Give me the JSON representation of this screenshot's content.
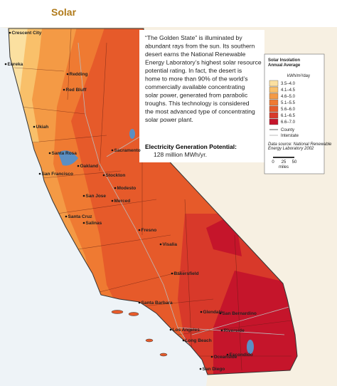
{
  "header": {
    "title": "Solar"
  },
  "description": {
    "lines": [
      "“The Golden State” is illuminated by",
      "abundant rays from the sun. Its southern",
      "desert earns the National Renewable",
      "Energy Laboratory’s highest solar resource",
      "potential rating. In fact, the desert is",
      "home to more than 90% of the world’s",
      "commercially available concentrating",
      "solar power, generated from parabolic",
      "troughs. This technology is considered",
      "the most advanced type of concentrating",
      "solar power plant."
    ]
  },
  "generation": {
    "label": "Electricity Generation Potential:",
    "value": "128 million MWh/yr."
  },
  "legend": {
    "title": [
      "Solar Insolation",
      "Annual Average"
    ],
    "unit": "kWh/m²/day",
    "items": [
      {
        "label": "3.5–4.0",
        "color": "#fbe0a0"
      },
      {
        "label": "4.1–4.5",
        "color": "#f9c06a"
      },
      {
        "label": "4.6–5.0",
        "color": "#f49a45"
      },
      {
        "label": "5.1–5.5",
        "color": "#ef7a32"
      },
      {
        "label": "5.6–6.0",
        "color": "#e65a2a"
      },
      {
        "label": "6.1–6.5",
        "color": "#d8392a"
      },
      {
        "label": "6.6–7.0",
        "color": "#c5152b"
      }
    ],
    "lines": [
      {
        "label": "County"
      },
      {
        "label": "Interstate"
      }
    ],
    "source": [
      "Data source: National Renewable",
      "Energy Laboratory 2002"
    ],
    "scale": {
      "ticks": [
        "0",
        "25",
        "50"
      ],
      "unit": "miles"
    }
  },
  "cities": [
    "Crescent City",
    "Eureka",
    "Redding",
    "Red Bluff",
    "Ukiah",
    "Santa Rosa",
    "Sacramento",
    "Stockton",
    "Oakland",
    "San Francisco",
    "San Jose",
    "Santa Cruz",
    "Salinas",
    "Modesto",
    "Merced",
    "Fresno",
    "Visalia",
    "Bakersfield",
    "Santa Barbara",
    "Glendale",
    "Los Angeles",
    "Long Beach",
    "San Bernardino",
    "Riverside",
    "Oceanside",
    "Escondido",
    "San Diego"
  ]
}
